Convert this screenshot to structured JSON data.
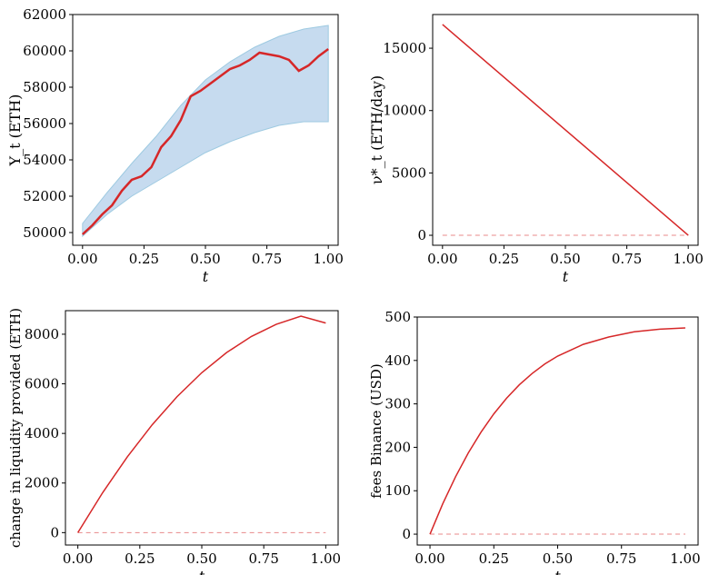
{
  "chart_data": [
    {
      "type": "line",
      "xlabel": "t",
      "ylabel": "Y_t  (ETH)",
      "xlim": [
        -0.04,
        1.04
      ],
      "ylim": [
        49300,
        62000
      ],
      "xticks": [
        0,
        0.25,
        0.5,
        0.75,
        1
      ],
      "xtick_labels": [
        "0.00",
        "0.25",
        "0.50",
        "0.75",
        "1.00"
      ],
      "yticks": [
        50000,
        52000,
        54000,
        56000,
        58000,
        60000,
        62000
      ],
      "ytick_labels": [
        "50000",
        "52000",
        "54000",
        "56000",
        "58000",
        "60000",
        "62000"
      ],
      "band_color": "#c6dbef",
      "band_edge_color": "#9ecae1",
      "line_color": "#d62728",
      "band": {
        "x": [
          0,
          0.1,
          0.2,
          0.3,
          0.4,
          0.5,
          0.6,
          0.7,
          0.8,
          0.9,
          1.0
        ],
        "upper": [
          50500,
          52200,
          53800,
          55300,
          57000,
          58400,
          59400,
          60200,
          60800,
          61200,
          61400
        ],
        "lower": [
          49800,
          51000,
          52000,
          52800,
          53600,
          54400,
          55000,
          55500,
          55900,
          56100,
          56100
        ]
      },
      "series": [
        {
          "x": [
            0,
            0.04,
            0.08,
            0.12,
            0.16,
            0.2,
            0.24,
            0.28,
            0.32,
            0.36,
            0.4,
            0.44,
            0.48,
            0.52,
            0.56,
            0.6,
            0.64,
            0.68,
            0.72,
            0.76,
            0.8,
            0.84,
            0.88,
            0.92,
            0.96,
            1.0
          ],
          "y": [
            49900,
            50400,
            51000,
            51500,
            52300,
            52900,
            53100,
            53600,
            54700,
            55300,
            56200,
            57500,
            57800,
            58200,
            58600,
            59000,
            59200,
            59500,
            59900,
            59800,
            59700,
            59500,
            58900,
            59200,
            59700,
            60100
          ]
        }
      ]
    },
    {
      "type": "line",
      "xlabel": "t",
      "ylabel": "ν*_t  (ETH/day)",
      "xlim": [
        -0.04,
        1.04
      ],
      "ylim": [
        -800,
        17700
      ],
      "xticks": [
        0,
        0.25,
        0.5,
        0.75,
        1
      ],
      "xtick_labels": [
        "0.00",
        "0.25",
        "0.50",
        "0.75",
        "1.00"
      ],
      "yticks": [
        0,
        5000,
        10000,
        15000
      ],
      "ytick_labels": [
        "0",
        "5000",
        "10000",
        "15000"
      ],
      "line_color": "#d62728",
      "series": [
        {
          "x": [
            0,
            1
          ],
          "y": [
            16900,
            0
          ]
        },
        {
          "x": [
            0,
            1
          ],
          "y": [
            0,
            0
          ],
          "dashed": true
        }
      ]
    },
    {
      "type": "line",
      "xlabel": "t",
      "ylabel": "change in liquidity provided  (ETH)",
      "xlim": [
        -0.05,
        1.05
      ],
      "ylim": [
        -500,
        8950
      ],
      "xticks": [
        0,
        0.25,
        0.5,
        0.75,
        1
      ],
      "xtick_labels": [
        "0.00",
        "0.25",
        "0.50",
        "0.75",
        "1.00"
      ],
      "yticks": [
        0,
        2000,
        4000,
        6000,
        8000
      ],
      "ytick_labels": [
        "0",
        "2000",
        "4000",
        "6000",
        "8000"
      ],
      "line_color": "#d62728",
      "series": [
        {
          "x": [
            0,
            0.1,
            0.2,
            0.3,
            0.4,
            0.5,
            0.6,
            0.7,
            0.8,
            0.9,
            1.0
          ],
          "y": [
            0,
            1610,
            3060,
            4350,
            5480,
            6450,
            7260,
            7910,
            8400,
            8730,
            8450
          ]
        },
        {
          "x": [
            0,
            1
          ],
          "y": [
            0,
            0
          ],
          "dashed": true
        }
      ]
    },
    {
      "type": "line",
      "xlabel": "t",
      "ylabel": "fees Binance  (USD)",
      "xlim": [
        -0.05,
        1.05
      ],
      "ylim": [
        -25,
        500
      ],
      "xticks": [
        0,
        0.25,
        0.5,
        0.75,
        1
      ],
      "xtick_labels": [
        "0.00",
        "0.25",
        "0.50",
        "0.75",
        "1.00"
      ],
      "yticks": [
        0,
        100,
        200,
        300,
        400,
        500
      ],
      "ytick_labels": [
        "0",
        "100",
        "200",
        "300",
        "400",
        "500"
      ],
      "line_color": "#d62728",
      "series": [
        {
          "x": [
            0,
            0.05,
            0.1,
            0.15,
            0.2,
            0.25,
            0.3,
            0.35,
            0.4,
            0.45,
            0.5,
            0.6,
            0.7,
            0.8,
            0.9,
            1.0
          ],
          "y": [
            0,
            70,
            132,
            187,
            235,
            277,
            313,
            344,
            370,
            392,
            410,
            437,
            454,
            466,
            472,
            475
          ]
        },
        {
          "x": [
            0,
            1
          ],
          "y": [
            0,
            0
          ],
          "dashed": true
        }
      ]
    }
  ]
}
